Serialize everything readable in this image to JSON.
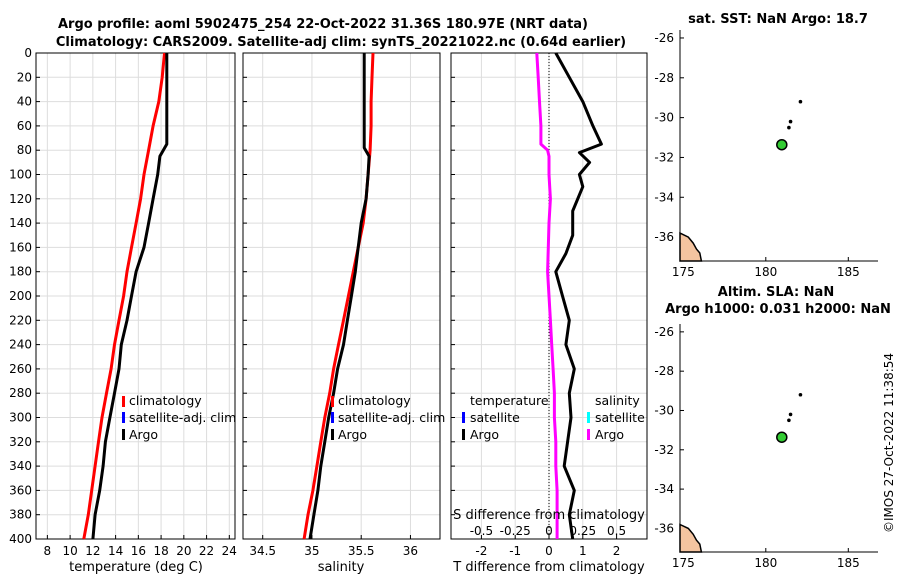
{
  "figure": {
    "title_line1": "Argo profile: aoml 5902475_254 22-Oct-2022 31.36S 180.97E (NRT data)",
    "title_line2": "Climatology: CARS2009. Satellite-adj clim: synTS_20221022.nc (0.64d earlier)",
    "timestamp": "©IMOS 27-Oct-2022 11:38:54"
  },
  "colors": {
    "climatology": "#ff0000",
    "satellite": "#0000ff",
    "argo": "#000000",
    "diff_salinity_satellite": "#00ffff",
    "diff_salinity_argo": "#ff00ff",
    "land": "#f4c4a0",
    "float_marker": "#33cc33",
    "grid": "#dddddd"
  },
  "chart_data": [
    {
      "id": "temperature",
      "type": "line",
      "xlabel": "temperature (deg C)",
      "ylabel": "",
      "xlim": [
        7,
        24.5
      ],
      "ylim": [
        400,
        0
      ],
      "x_ticks": [
        "8",
        "10",
        "12",
        "14",
        "16",
        "18",
        "20",
        "22",
        "24"
      ],
      "y_ticks": [
        "0",
        "20",
        "40",
        "60",
        "80",
        "100",
        "120",
        "140",
        "160",
        "180",
        "200",
        "220",
        "240",
        "260",
        "280",
        "300",
        "320",
        "340",
        "360",
        "380",
        "400"
      ],
      "legend": [
        "climatology",
        "satellite-adj. clim",
        "Argo"
      ],
      "series": [
        {
          "name": "climatology",
          "color": "#ff0000",
          "depth": [
            0,
            20,
            40,
            60,
            80,
            100,
            120,
            140,
            160,
            180,
            200,
            220,
            240,
            260,
            280,
            300,
            320,
            340,
            360,
            380,
            400
          ],
          "values": [
            18.3,
            18.1,
            17.8,
            17.3,
            16.9,
            16.5,
            16.2,
            15.8,
            15.4,
            15.0,
            14.7,
            14.3,
            13.9,
            13.6,
            13.2,
            12.8,
            12.5,
            12.2,
            11.9,
            11.6,
            11.2
          ]
        },
        {
          "name": "Argo",
          "color": "#000000",
          "depth": [
            0,
            20,
            40,
            60,
            75,
            85,
            100,
            120,
            140,
            160,
            180,
            200,
            220,
            240,
            260,
            280,
            300,
            320,
            340,
            360,
            380,
            400
          ],
          "values": [
            18.5,
            18.5,
            18.5,
            18.5,
            18.5,
            17.9,
            17.7,
            17.3,
            16.9,
            16.5,
            15.8,
            15.4,
            15.0,
            14.5,
            14.3,
            13.9,
            13.5,
            13.1,
            12.9,
            12.6,
            12.2,
            12.0
          ]
        }
      ]
    },
    {
      "id": "salinity",
      "type": "line",
      "xlabel": "salinity",
      "ylabel": "",
      "xlim": [
        34.3,
        36.3
      ],
      "ylim": [
        400,
        0
      ],
      "x_ticks": [
        "34.5",
        "35",
        "35.5",
        "36"
      ],
      "legend": [
        "climatology",
        "satellite-adj. clim",
        "Argo"
      ],
      "series": [
        {
          "name": "climatology",
          "color": "#ff0000",
          "depth": [
            0,
            20,
            40,
            60,
            80,
            100,
            120,
            140,
            160,
            180,
            200,
            220,
            240,
            260,
            280,
            300,
            320,
            340,
            360,
            380,
            400
          ],
          "values": [
            35.62,
            35.61,
            35.6,
            35.6,
            35.59,
            35.57,
            35.55,
            35.52,
            35.47,
            35.42,
            35.37,
            35.32,
            35.27,
            35.22,
            35.18,
            35.13,
            35.09,
            35.05,
            35.01,
            34.96,
            34.92
          ]
        },
        {
          "name": "Argo",
          "color": "#000000",
          "depth": [
            0,
            20,
            40,
            60,
            78,
            85,
            100,
            120,
            140,
            160,
            180,
            200,
            220,
            240,
            260,
            280,
            300,
            320,
            340,
            360,
            380,
            400
          ],
          "values": [
            35.53,
            35.53,
            35.53,
            35.53,
            35.53,
            35.58,
            35.57,
            35.55,
            35.5,
            35.47,
            35.44,
            35.4,
            35.36,
            35.32,
            35.26,
            35.22,
            35.17,
            35.13,
            35.09,
            35.06,
            35.02,
            34.98
          ]
        }
      ]
    },
    {
      "id": "difference",
      "type": "line",
      "xlabel": "T difference from climatology",
      "x2label": "S difference from climatology",
      "xlim": [
        -2.9,
        2.9
      ],
      "x2lim": [
        -0.725,
        0.725
      ],
      "ylim": [
        400,
        0
      ],
      "x_ticks": [
        "-2",
        "-1",
        "0",
        "1",
        "2"
      ],
      "x2_ticks": [
        "-0.5",
        "-0.25",
        "0",
        "0.25",
        "0.5"
      ],
      "legend_temperature_title": "temperature",
      "legend_salinity_title": "salinity",
      "legend_temperature": [
        "satellite",
        "Argo"
      ],
      "legend_salinity": [
        "satellite",
        "Argo"
      ],
      "series": [
        {
          "name": "temperature Argo",
          "axis": "T",
          "color": "#000000",
          "depth": [
            0,
            20,
            40,
            60,
            75,
            82,
            90,
            100,
            110,
            130,
            150,
            165,
            180,
            200,
            220,
            240,
            260,
            280,
            300,
            320,
            340,
            360,
            380,
            400
          ],
          "values": [
            0.2,
            0.6,
            1.0,
            1.3,
            1.55,
            0.9,
            1.2,
            0.9,
            1.0,
            0.7,
            0.7,
            0.5,
            0.2,
            0.4,
            0.6,
            0.5,
            0.75,
            0.6,
            0.65,
            0.55,
            0.45,
            0.75,
            0.6,
            0.7
          ]
        },
        {
          "name": "salinity Argo",
          "axis": "S",
          "color": "#ff00ff",
          "depth": [
            0,
            20,
            40,
            60,
            75,
            80,
            85,
            100,
            120,
            140,
            160,
            180,
            200,
            220,
            240,
            260,
            280,
            300,
            320,
            340,
            360,
            380,
            400
          ],
          "values": [
            -0.09,
            -0.08,
            -0.07,
            -0.06,
            -0.06,
            -0.01,
            0.0,
            0.0,
            0.01,
            0.0,
            -0.005,
            -0.01,
            0.0,
            0.01,
            0.02,
            0.03,
            0.04,
            0.04,
            0.05,
            0.05,
            0.06,
            0.06,
            0.06
          ]
        }
      ]
    },
    {
      "id": "map_sst",
      "type": "scatter",
      "title": "sat. SST: NaN Argo: 18.7",
      "xlim": [
        174.8,
        186.8
      ],
      "ylim": [
        -37.2,
        -25.6
      ],
      "x_ticks": [
        "175",
        "180",
        "185"
      ],
      "y_ticks": [
        "-26",
        "-28",
        "-30",
        "-32",
        "-34",
        "-36"
      ],
      "float_position": {
        "lon": 180.97,
        "lat": -31.36
      }
    },
    {
      "id": "map_sla",
      "type": "scatter",
      "title_line1": "Altim. SLA: NaN",
      "title_line2": "Argo h1000: 0.031 h2000: NaN",
      "xlim": [
        174.8,
        186.8
      ],
      "ylim": [
        -37.2,
        -25.6
      ],
      "x_ticks": [
        "175",
        "180",
        "185"
      ],
      "y_ticks": [
        "-26",
        "-28",
        "-30",
        "-32",
        "-34",
        "-36"
      ],
      "float_position": {
        "lon": 180.97,
        "lat": -31.36
      }
    }
  ]
}
